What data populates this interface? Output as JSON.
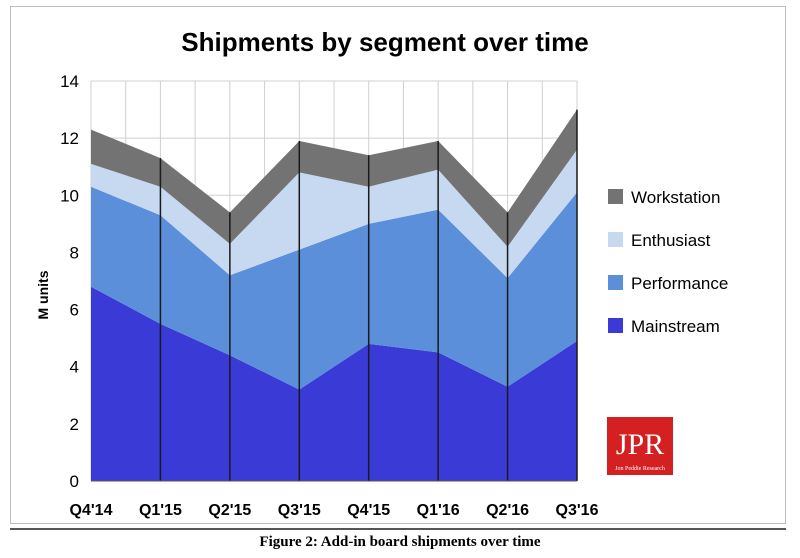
{
  "chart_data": {
    "type": "area",
    "stacked": true,
    "title": "Shipments by segment over time",
    "xlabel": "",
    "ylabel": "M units",
    "ylim": [
      0,
      14
    ],
    "yticks": [
      0,
      2,
      4,
      6,
      8,
      10,
      12,
      14
    ],
    "grid": true,
    "legend_position": "right",
    "categories": [
      "Q4'14",
      "Q1'15",
      "Q2'15",
      "Q3'15",
      "Q4'15",
      "Q1'16",
      "Q2'16",
      "Q3'16"
    ],
    "series": [
      {
        "name": "Mainstream",
        "color": "#3a3ad6",
        "values": [
          6.8,
          5.5,
          4.4,
          3.2,
          4.8,
          4.5,
          3.3,
          4.9
        ]
      },
      {
        "name": "Performance",
        "color": "#5b8fd9",
        "values": [
          3.5,
          3.8,
          2.8,
          4.9,
          4.2,
          5.0,
          3.8,
          5.2
        ]
      },
      {
        "name": "Enthusiast",
        "color": "#c6d9f1",
        "values": [
          0.8,
          1.0,
          1.1,
          2.7,
          1.3,
          1.4,
          1.1,
          1.5
        ]
      },
      {
        "name": "Workstation",
        "color": "#737373",
        "values": [
          1.2,
          1.0,
          1.1,
          1.1,
          1.1,
          1.0,
          1.2,
          1.4
        ]
      }
    ]
  },
  "logo": {
    "text": "JPR",
    "subtext": "Jon Peddie Research",
    "color": "#d42020"
  },
  "caption": "Figure 2: Add-in board shipments over time"
}
